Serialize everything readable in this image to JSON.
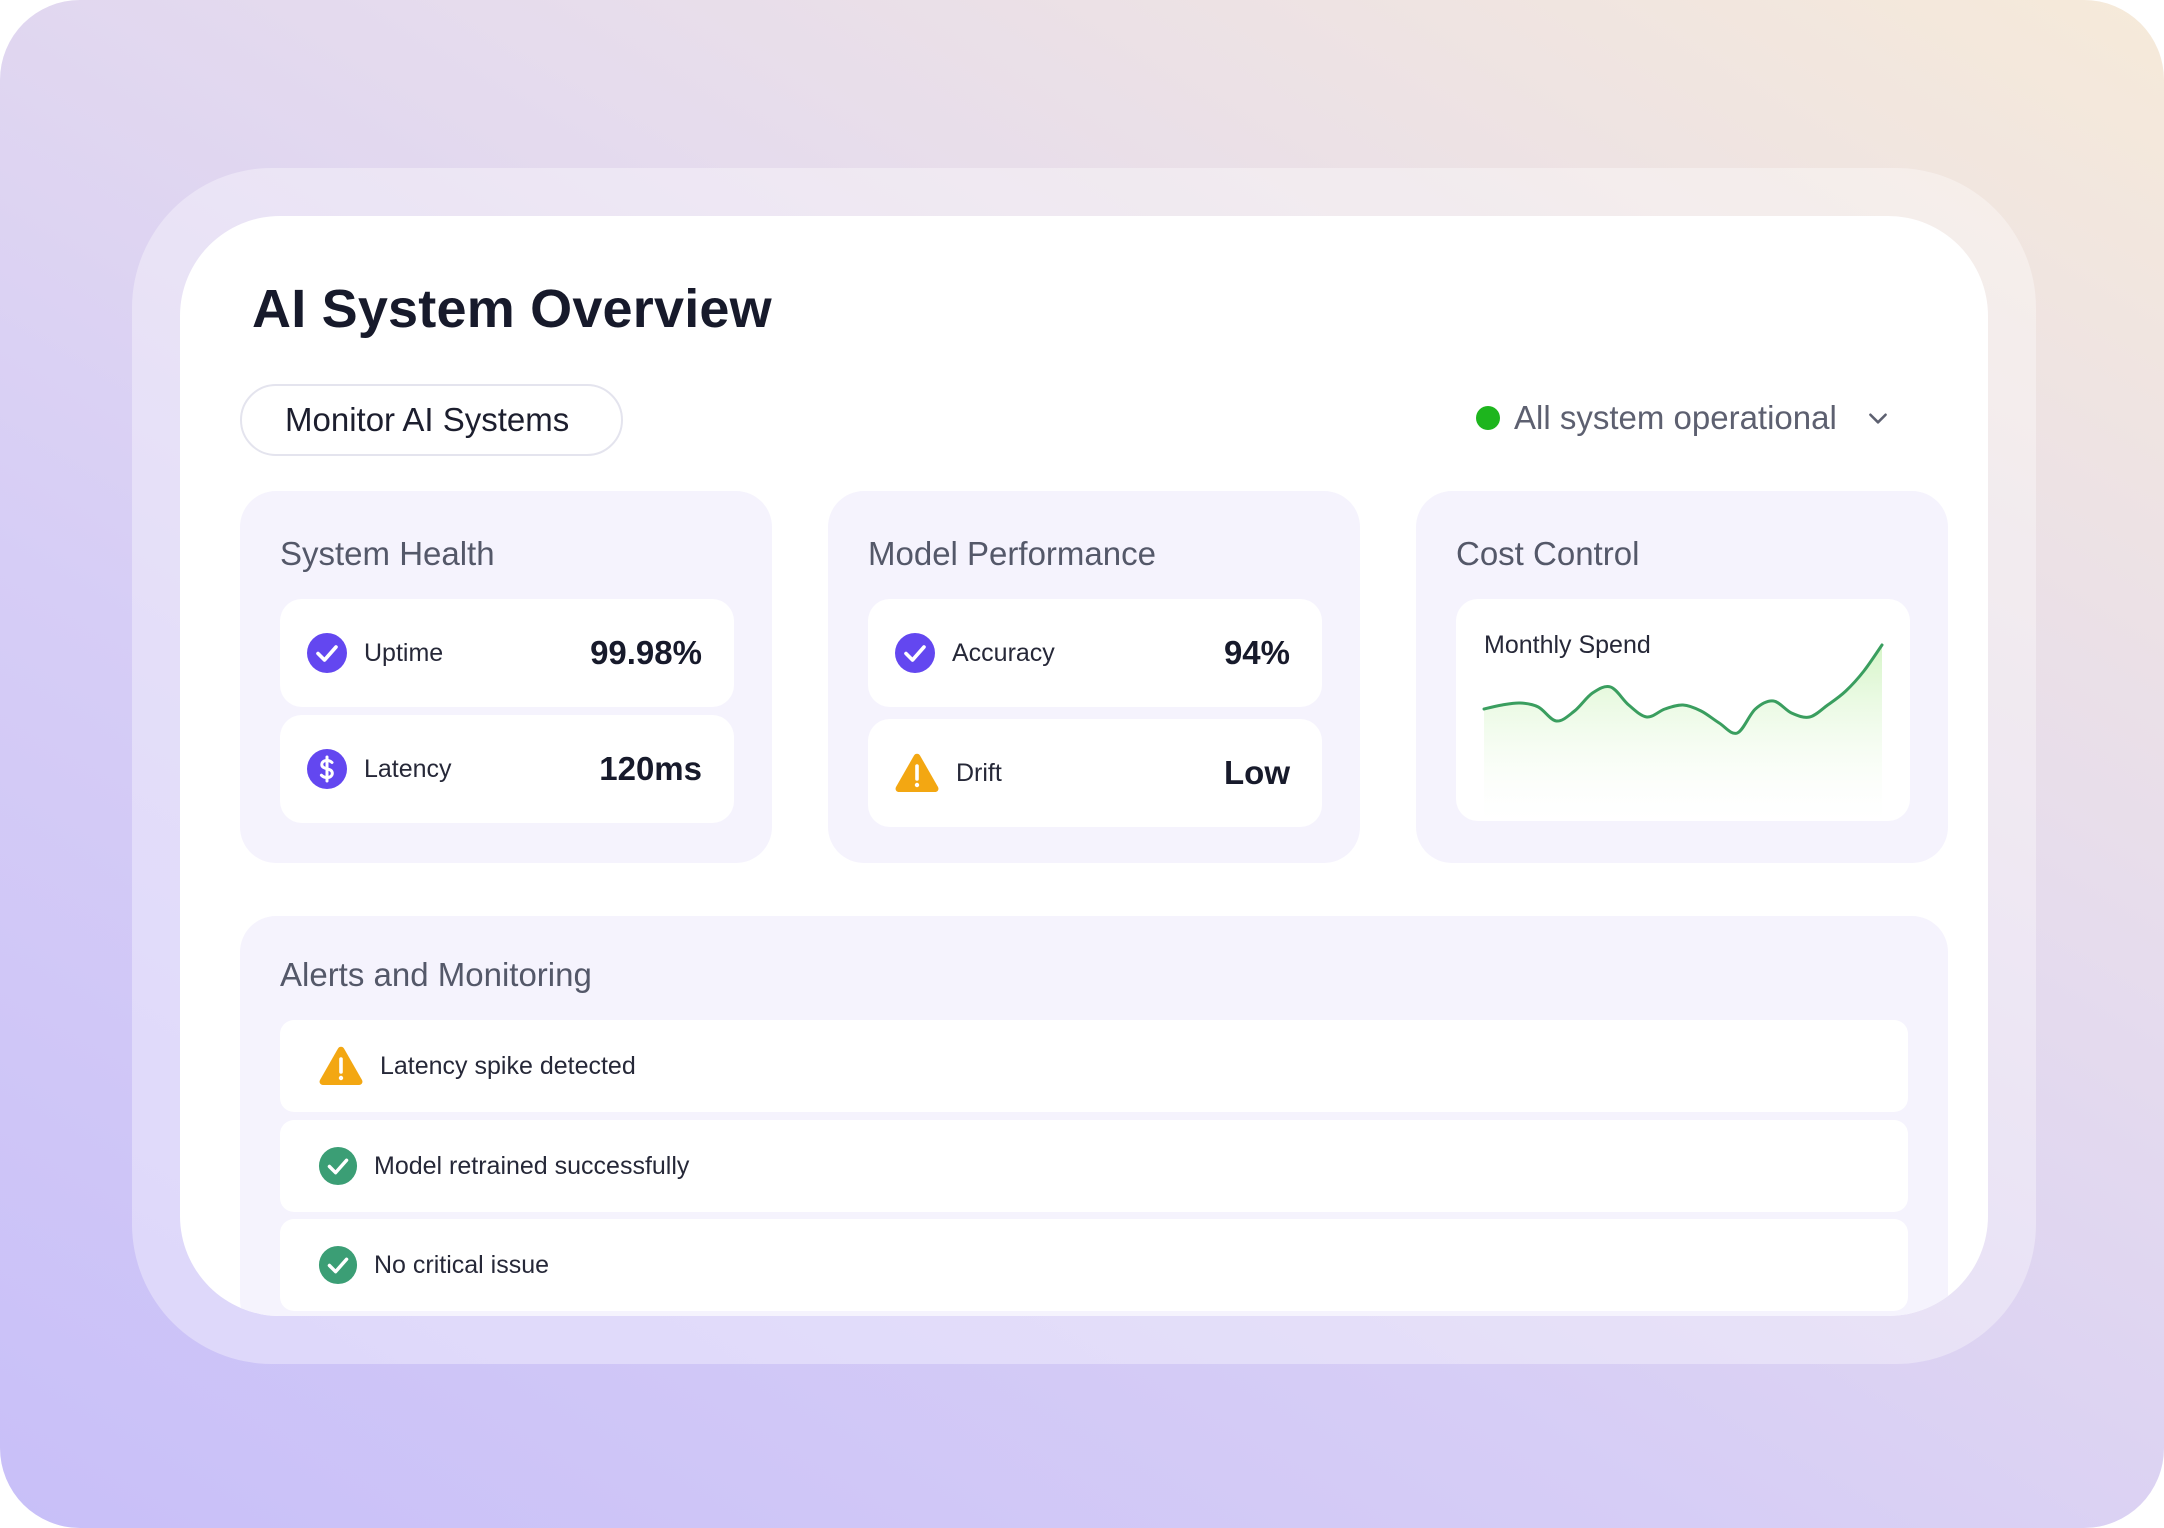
{
  "page": {
    "title": "AI System Overview",
    "filter_label": "Monitor AI Systems",
    "status": {
      "text": "All system operational",
      "color": "#1db51d",
      "icon": "chevron-down-icon"
    }
  },
  "cards": {
    "system_health": {
      "title": "System Health",
      "metrics": [
        {
          "label": "Uptime",
          "value": "99.98%",
          "icon": "check-circle-icon",
          "color": "#6347f0"
        },
        {
          "label": "Latency",
          "value": "120ms",
          "icon": "dollar-circle-icon",
          "color": "#6347f0"
        }
      ]
    },
    "model_performance": {
      "title": "Model Performance",
      "metrics": [
        {
          "label": "Accuracy",
          "value": "94%",
          "icon": "check-circle-icon",
          "color": "#6347f0"
        },
        {
          "label": "Drift",
          "value": "Low",
          "icon": "warning-triangle-icon",
          "color": "#f3a712"
        }
      ]
    },
    "cost_control": {
      "title": "Cost Control",
      "chart_label": "Monthly Spend"
    }
  },
  "chart_data": {
    "type": "area",
    "series": [
      {
        "values": [
          56,
          58,
          59,
          57,
          50,
          55,
          64,
          67,
          58,
          52,
          56,
          58,
          55,
          49,
          44,
          56,
          60,
          54,
          52,
          58,
          65,
          75,
          88
        ]
      }
    ],
    "ylim": [
      0,
      100
    ],
    "color": "#3a9e5f",
    "fill": "#dcf7cf"
  },
  "alerts": {
    "title": "Alerts and Monitoring",
    "items": [
      {
        "text": "Latency spike detected",
        "icon": "warning-triangle-icon",
        "color": "#f3a712"
      },
      {
        "text": "Model retrained successfully",
        "icon": "check-circle-icon",
        "color": "#3b9e75"
      },
      {
        "text": "No critical issue",
        "icon": "check-circle-icon",
        "color": "#3b9e75"
      }
    ]
  },
  "colors": {
    "accent": "#6347f0",
    "warning": "#f3a712",
    "success": "#3b9e75",
    "card_bg": "#f5f3fd"
  }
}
